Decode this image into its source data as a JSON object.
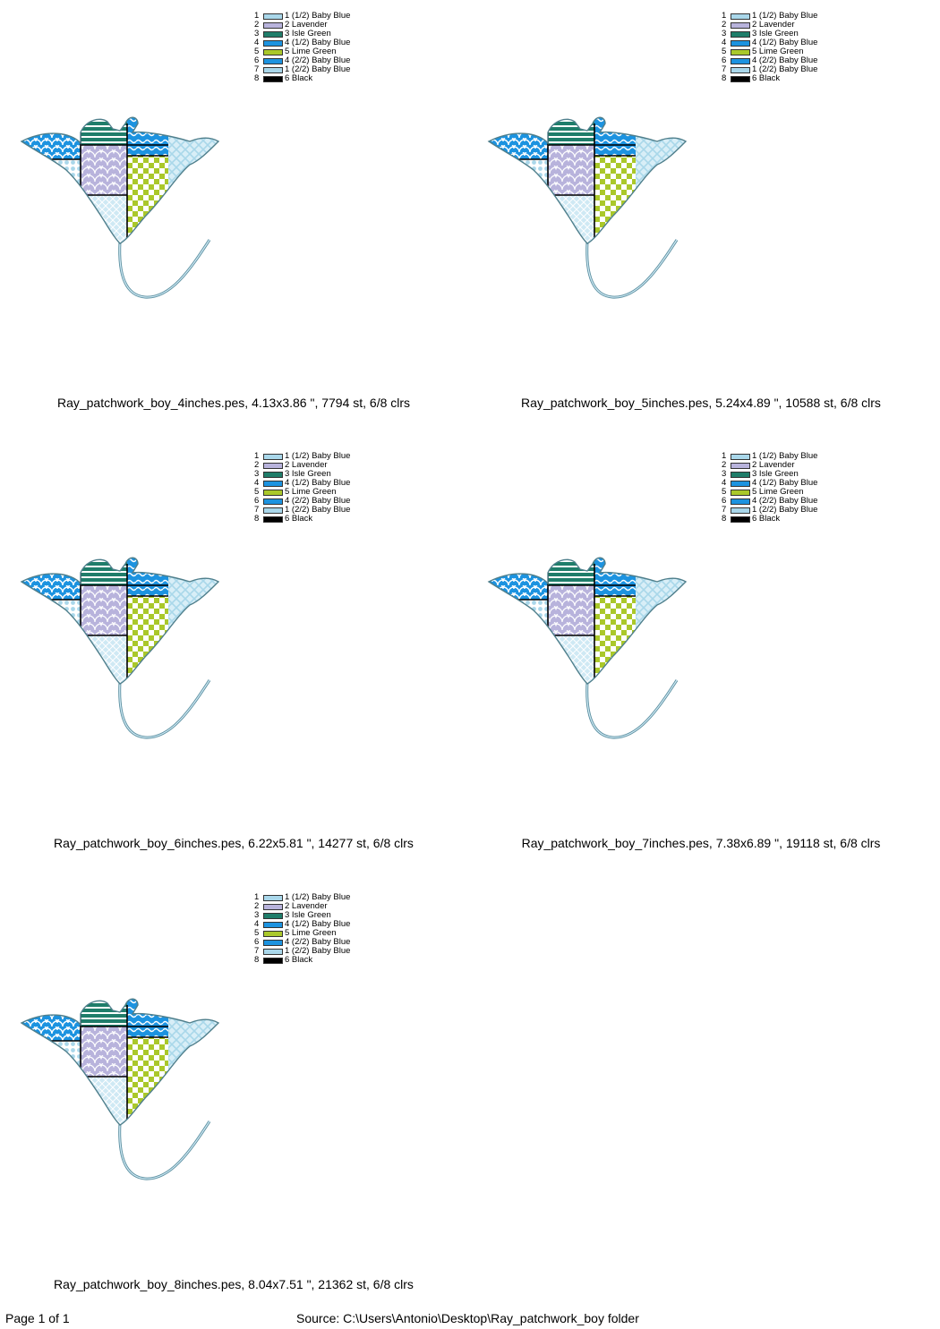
{
  "legend": [
    {
      "num": "1",
      "label": "1 (1/2) Baby Blue",
      "color": "#a9d7ea"
    },
    {
      "num": "2",
      "label": "2 Lavender",
      "color": "#b8b3dc"
    },
    {
      "num": "3",
      "label": "3 Isle Green",
      "color": "#1f7d6a"
    },
    {
      "num": "4",
      "label": "4 (1/2) Baby Blue",
      "color": "#1c93e0"
    },
    {
      "num": "5",
      "label": "5 Lime Green",
      "color": "#aac82a"
    },
    {
      "num": "6",
      "label": "4 (2/2) Baby Blue",
      "color": "#1c93e0"
    },
    {
      "num": "7",
      "label": "1 (2/2) Baby Blue",
      "color": "#a9d7ea"
    },
    {
      "num": "8",
      "label": "6 Black",
      "color": "#000000"
    }
  ],
  "designs": [
    {
      "caption": "Ray_patchwork_boy_4inches.pes, 4.13x3.86 \", 7794 st, 6/8 clrs"
    },
    {
      "caption": "Ray_patchwork_boy_5inches.pes, 5.24x4.89 \", 10588 st, 6/8 clrs"
    },
    {
      "caption": "Ray_patchwork_boy_6inches.pes, 6.22x5.81 \", 14277 st, 6/8 clrs"
    },
    {
      "caption": "Ray_patchwork_boy_7inches.pes, 7.38x6.89 \", 19118 st, 6/8 clrs"
    },
    {
      "caption": "Ray_patchwork_boy_8inches.pes, 8.04x7.51 \", 21362 st, 6/8 clrs"
    }
  ],
  "footer": {
    "page": "Page 1 of 1",
    "source": "Source: C:\\Users\\Antonio\\Desktop\\Ray_patchwork_boy folder"
  }
}
